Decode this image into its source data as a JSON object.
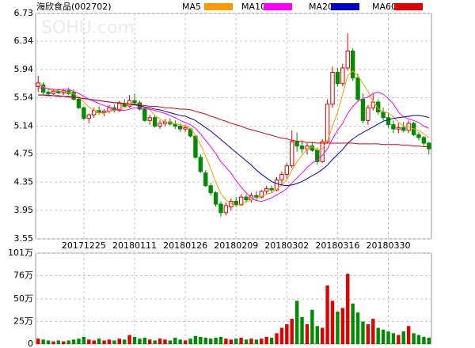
{
  "chart_data": [
    {
      "type": "candlestick",
      "title": "海欣食品(002702)",
      "watermark": "SOHU.com",
      "up_color": "#e00000",
      "down_color": "#008c00",
      "categories": [
        null,
        null,
        null,
        null,
        null,
        null,
        null,
        null,
        null,
        "20171225",
        null,
        null,
        null,
        null,
        null,
        null,
        null,
        null,
        null,
        "20180111",
        null,
        null,
        null,
        null,
        null,
        null,
        null,
        null,
        null,
        "20180126",
        null,
        null,
        null,
        null,
        null,
        null,
        null,
        null,
        null,
        "20180209",
        null,
        null,
        null,
        null,
        null,
        null,
        null,
        null,
        null,
        "20180302",
        null,
        null,
        null,
        null,
        null,
        null,
        null,
        null,
        null,
        "20180316",
        null,
        null,
        null,
        null,
        null,
        null,
        null,
        null,
        null,
        "20180330",
        null,
        null,
        null,
        null,
        null,
        null,
        null,
        null
      ],
      "open": [
        5.7,
        5.72,
        5.62,
        5.6,
        5.63,
        5.61,
        5.64,
        5.62,
        5.52,
        5.4,
        5.25,
        5.3,
        5.36,
        5.33,
        5.35,
        5.4,
        5.36,
        5.46,
        5.42,
        5.5,
        5.47,
        5.38,
        5.22,
        5.26,
        5.14,
        5.18,
        5.2,
        5.17,
        5.14,
        5.1,
        5.1,
        5.0,
        4.7,
        4.48,
        4.3,
        4.2,
        4.04,
        3.92,
        4.0,
        4.08,
        4.03,
        4.14,
        4.1,
        4.16,
        4.14,
        4.22,
        4.26,
        4.24,
        4.38,
        4.46,
        4.58,
        4.92,
        4.86,
        4.82,
        4.86,
        4.8,
        4.64,
        4.92,
        5.45,
        5.9,
        5.74,
        5.96,
        6.2,
        5.82,
        5.52,
        5.22,
        5.4,
        5.48,
        5.34,
        5.26,
        5.16,
        5.1,
        5.12,
        5.08,
        5.18,
        5.02,
        4.98,
        4.9
      ],
      "high": [
        5.85,
        5.76,
        5.66,
        5.66,
        5.67,
        5.66,
        5.68,
        5.66,
        5.54,
        5.42,
        5.32,
        5.4,
        5.42,
        5.38,
        5.44,
        5.45,
        5.5,
        5.52,
        5.58,
        5.6,
        5.5,
        5.4,
        5.3,
        5.3,
        5.22,
        5.24,
        5.25,
        5.22,
        5.18,
        5.16,
        5.12,
        5.02,
        4.74,
        4.52,
        4.34,
        4.22,
        4.08,
        4.06,
        4.12,
        4.14,
        4.18,
        4.18,
        4.2,
        4.22,
        4.24,
        4.3,
        4.3,
        4.42,
        4.5,
        4.62,
        5.08,
        5.05,
        4.94,
        4.9,
        4.92,
        4.84,
        4.96,
        5.52,
        5.98,
        5.96,
        6.02,
        6.45,
        6.24,
        5.88,
        5.6,
        5.44,
        5.6,
        5.52,
        5.4,
        5.32,
        5.22,
        5.18,
        5.2,
        5.22,
        5.2,
        5.06,
        5.0,
        4.92
      ],
      "low": [
        5.62,
        5.58,
        5.57,
        5.58,
        5.59,
        5.58,
        5.58,
        5.5,
        5.38,
        5.22,
        5.18,
        5.26,
        5.3,
        5.28,
        5.32,
        5.33,
        5.34,
        5.4,
        5.4,
        5.45,
        5.36,
        5.2,
        5.16,
        5.12,
        5.1,
        5.14,
        5.15,
        5.1,
        5.06,
        5.06,
        4.98,
        4.68,
        4.48,
        4.28,
        4.16,
        4.0,
        3.86,
        3.88,
        3.95,
        4.0,
        4.02,
        4.06,
        4.06,
        4.1,
        4.12,
        4.18,
        4.2,
        4.22,
        4.32,
        4.4,
        4.55,
        4.78,
        4.76,
        4.74,
        4.78,
        4.6,
        4.62,
        4.9,
        5.4,
        5.7,
        5.7,
        5.92,
        5.78,
        5.48,
        5.18,
        5.16,
        5.36,
        5.3,
        5.22,
        5.12,
        5.04,
        5.04,
        5.05,
        5.04,
        5.0,
        4.94,
        4.86,
        4.74
      ],
      "close": [
        5.75,
        5.62,
        5.6,
        5.63,
        5.61,
        5.64,
        5.6,
        5.52,
        5.4,
        5.25,
        5.3,
        5.36,
        5.33,
        5.35,
        5.4,
        5.36,
        5.46,
        5.42,
        5.5,
        5.47,
        5.38,
        5.22,
        5.26,
        5.14,
        5.18,
        5.2,
        5.17,
        5.14,
        5.1,
        5.12,
        5.0,
        4.7,
        4.5,
        4.3,
        4.2,
        4.04,
        3.92,
        4.02,
        4.08,
        4.03,
        4.14,
        4.1,
        4.16,
        4.14,
        4.22,
        4.26,
        4.24,
        4.38,
        4.46,
        4.58,
        4.92,
        4.86,
        4.82,
        4.86,
        4.8,
        4.64,
        4.92,
        5.45,
        5.9,
        5.74,
        5.96,
        6.2,
        5.82,
        5.52,
        5.22,
        5.4,
        5.48,
        5.34,
        5.26,
        5.16,
        5.1,
        5.12,
        5.08,
        5.18,
        5.02,
        4.98,
        4.9,
        4.82
      ],
      "series": [
        {
          "name": "MA5",
          "color": "#ff9900",
          "values": [
            5.72,
            5.7,
            5.66,
            5.64,
            5.64,
            5.62,
            5.62,
            5.6,
            5.55,
            5.48,
            5.41,
            5.37,
            5.33,
            5.32,
            5.35,
            5.36,
            5.38,
            5.4,
            5.43,
            5.44,
            5.45,
            5.4,
            5.37,
            5.29,
            5.24,
            5.2,
            5.19,
            5.17,
            5.16,
            5.15,
            5.11,
            5.01,
            4.88,
            4.72,
            4.54,
            4.35,
            4.19,
            4.1,
            4.05,
            4.02,
            4.04,
            4.07,
            4.1,
            4.11,
            4.15,
            4.18,
            4.2,
            4.25,
            4.31,
            4.38,
            4.52,
            4.64,
            4.73,
            4.81,
            4.85,
            4.8,
            4.82,
            4.93,
            5.14,
            5.33,
            5.59,
            5.85,
            5.92,
            5.85,
            5.74,
            5.63,
            5.49,
            5.39,
            5.34,
            5.33,
            5.27,
            5.2,
            5.14,
            5.13,
            5.1,
            5.08,
            5.03,
            4.98
          ]
        },
        {
          "name": "MA10",
          "color": "#ff00ff",
          "values": [
            5.68,
            5.68,
            5.67,
            5.66,
            5.65,
            5.66,
            5.66,
            5.63,
            5.6,
            5.56,
            5.52,
            5.49,
            5.46,
            5.43,
            5.41,
            5.38,
            5.37,
            5.36,
            5.38,
            5.4,
            5.4,
            5.39,
            5.38,
            5.36,
            5.34,
            5.32,
            5.29,
            5.26,
            5.22,
            5.19,
            5.16,
            5.11,
            5.03,
            4.94,
            4.85,
            4.75,
            4.64,
            4.56,
            4.48,
            4.37,
            4.28,
            4.2,
            4.13,
            4.09,
            4.08,
            4.1,
            4.13,
            4.17,
            4.21,
            4.26,
            4.34,
            4.41,
            4.48,
            4.56,
            4.62,
            4.66,
            4.73,
            4.82,
            4.96,
            5.08,
            5.18,
            5.32,
            5.42,
            5.49,
            5.53,
            5.55,
            5.6,
            5.62,
            5.59,
            5.53,
            5.45,
            5.34,
            5.27,
            5.24,
            5.22,
            5.19,
            5.14,
            5.11
          ]
        },
        {
          "name": "MA20",
          "color": "#0000cc",
          "values": [
            5.58,
            5.58,
            5.58,
            5.57,
            5.57,
            5.56,
            5.56,
            5.55,
            5.54,
            5.53,
            5.52,
            5.51,
            5.5,
            5.49,
            5.48,
            5.47,
            5.47,
            5.46,
            5.45,
            5.44,
            5.43,
            5.41,
            5.4,
            5.38,
            5.37,
            5.35,
            5.33,
            5.31,
            5.29,
            5.28,
            5.25,
            5.22,
            5.17,
            5.12,
            5.07,
            5.01,
            4.95,
            4.89,
            4.83,
            4.77,
            4.71,
            4.65,
            4.59,
            4.52,
            4.46,
            4.41,
            4.36,
            4.33,
            4.31,
            4.3,
            4.31,
            4.33,
            4.36,
            4.4,
            4.44,
            4.48,
            4.53,
            4.59,
            4.67,
            4.74,
            4.81,
            4.9,
            4.96,
            5.01,
            5.05,
            5.09,
            5.13,
            5.17,
            5.21,
            5.23,
            5.25,
            5.26,
            5.27,
            5.28,
            5.29,
            5.29,
            5.28,
            5.26
          ]
        },
        {
          "name": "MA60",
          "color": "#e00000",
          "values": [
            5.58,
            5.58,
            5.57,
            5.57,
            5.56,
            5.56,
            5.55,
            5.55,
            5.54,
            5.53,
            5.52,
            5.51,
            5.5,
            5.49,
            5.48,
            5.47,
            5.47,
            5.46,
            5.45,
            5.45,
            5.44,
            5.43,
            5.42,
            5.42,
            5.41,
            5.4,
            5.4,
            5.39,
            5.38,
            5.38,
            5.37,
            5.35,
            5.33,
            5.31,
            5.28,
            5.26,
            5.23,
            5.21,
            5.18,
            5.16,
            5.14,
            5.11,
            5.09,
            5.07,
            5.05,
            5.03,
            5.01,
            4.99,
            4.97,
            4.96,
            4.94,
            4.93,
            4.92,
            4.91,
            4.91,
            4.9,
            4.9,
            4.9,
            4.9,
            4.9,
            4.9,
            4.9,
            4.9,
            4.89,
            4.89,
            4.89,
            4.89,
            4.89,
            4.88,
            4.88,
            4.88,
            4.88,
            4.87,
            4.87,
            4.86,
            4.86,
            4.85,
            4.85
          ]
        }
      ],
      "ylim": [
        3.55,
        6.73
      ],
      "yticks": [
        6.73,
        6.34,
        5.94,
        5.54,
        5.14,
        4.75,
        4.35,
        3.95,
        3.55
      ],
      "grid": true
    },
    {
      "type": "bar",
      "values": [
        6,
        5,
        4,
        3,
        4,
        3,
        4,
        5,
        6,
        8,
        5,
        4,
        6,
        4,
        5,
        4,
        6,
        5,
        10,
        8,
        6,
        7,
        5,
        4,
        6,
        5,
        4,
        7,
        5,
        4,
        6,
        9,
        8,
        7,
        6,
        7,
        8,
        6,
        5,
        6,
        7,
        5,
        6,
        5,
        6,
        8,
        7,
        12,
        18,
        22,
        28,
        48,
        30,
        22,
        38,
        20,
        18,
        65,
        48,
        36,
        40,
        78,
        45,
        35,
        25,
        22,
        28,
        18,
        16,
        14,
        12,
        10,
        14,
        20,
        12,
        10,
        8,
        7
      ],
      "ylim": [
        0,
        101
      ],
      "yticks": [
        {
          "value": 101,
          "label": "101万"
        },
        {
          "value": 76,
          "label": "76万"
        },
        {
          "value": 50,
          "label": "50万"
        },
        {
          "value": 25,
          "label": "25万"
        },
        0
      ],
      "grid": true
    }
  ]
}
